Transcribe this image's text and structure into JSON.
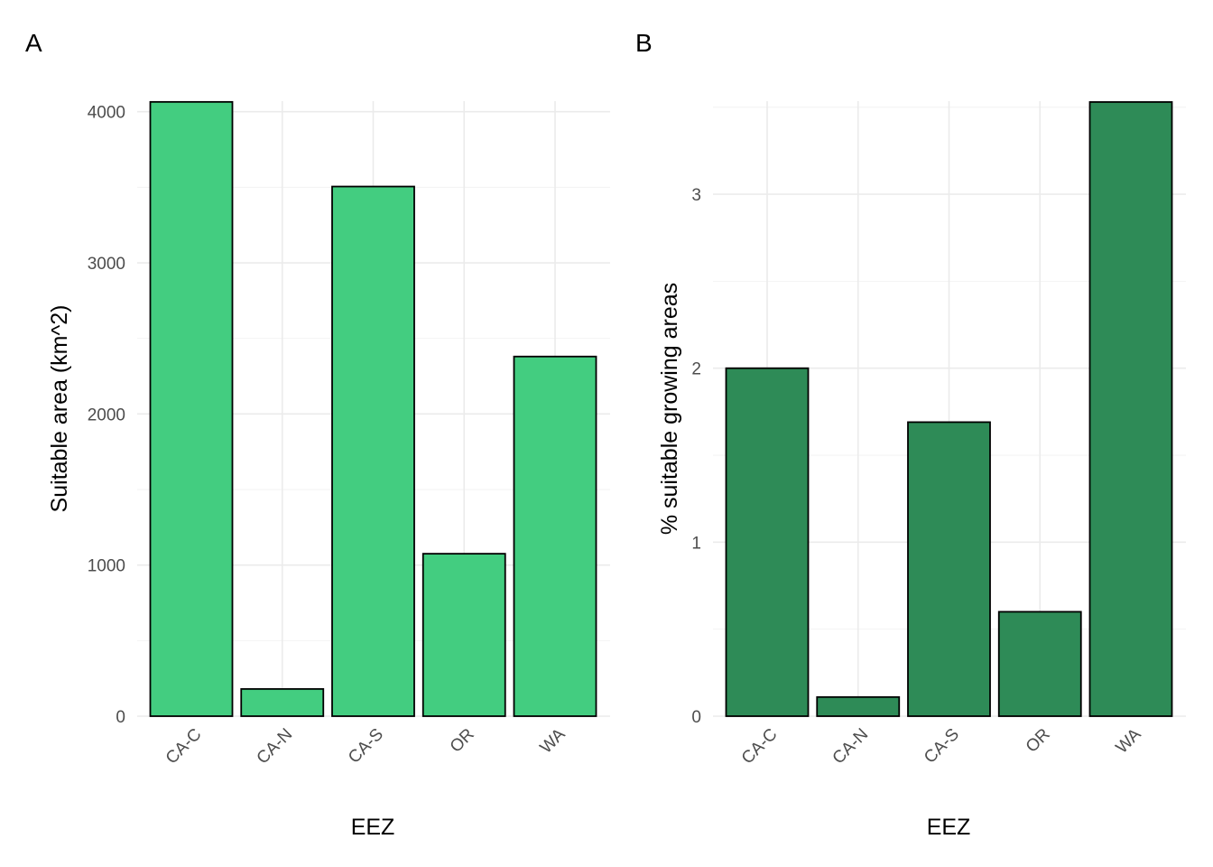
{
  "chart_data": [
    {
      "type": "bar",
      "panel_label": "A",
      "categories": [
        "CA-C",
        "CA-N",
        "CA-S",
        "OR",
        "WA"
      ],
      "values": [
        4065,
        180,
        3505,
        1075,
        2380
      ],
      "xlabel": "EEZ",
      "ylabel": "Suitable area (km^2)",
      "ylim": [
        0,
        4070
      ],
      "yticks": [
        0,
        1000,
        2000,
        3000,
        4000
      ],
      "ytick_labels": [
        "0",
        "1000",
        "2000",
        "3000",
        "4000"
      ],
      "bar_color": "#43CD80",
      "grid": true,
      "legend": "none"
    },
    {
      "type": "bar",
      "panel_label": "B",
      "categories": [
        "CA-C",
        "CA-N",
        "CA-S",
        "OR",
        "WA"
      ],
      "values": [
        2.0,
        0.11,
        1.69,
        0.6,
        3.53
      ],
      "xlabel": "EEZ",
      "ylabel": "% suitable growing areas",
      "ylim": [
        0,
        3.535
      ],
      "yticks": [
        0,
        1,
        2,
        3
      ],
      "ytick_labels": [
        "0",
        "1",
        "2",
        "3"
      ],
      "bar_color": "#2E8B57",
      "grid": true,
      "legend": "none"
    }
  ]
}
